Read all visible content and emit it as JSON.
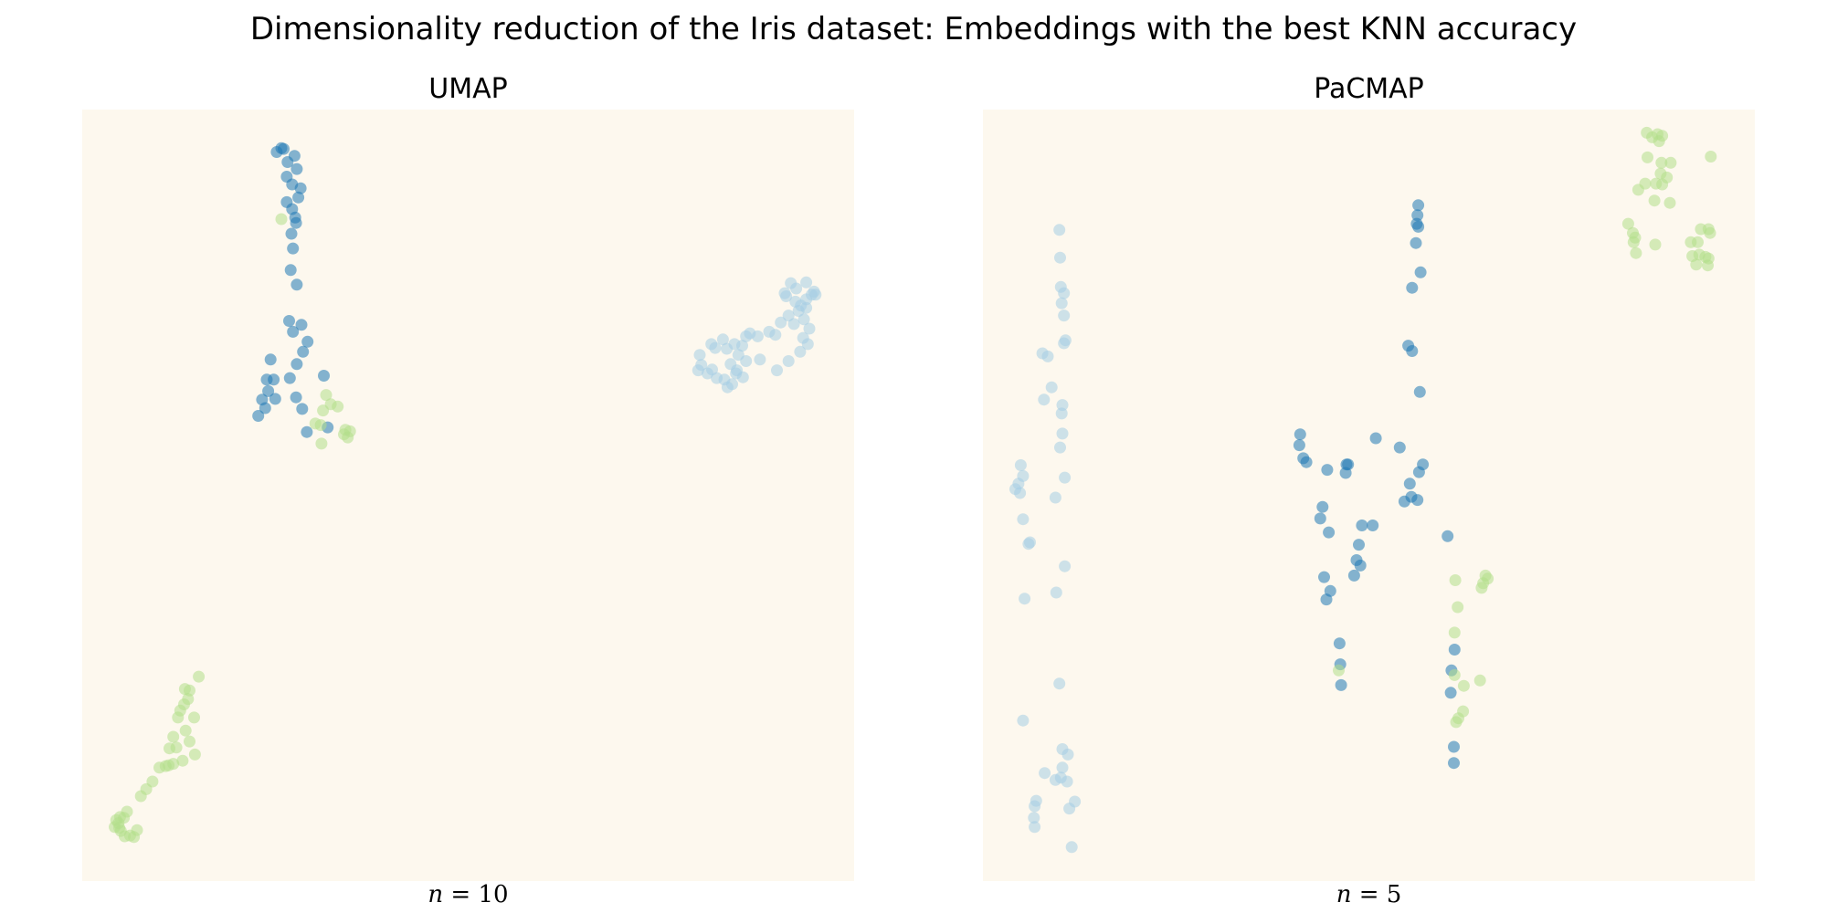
{
  "title": "Dimensionality reduction of the Iris dataset: Embeddings with the best KNN accuracy",
  "colors": {
    "background": "#fdf8ee",
    "setosa": "#a6cee3",
    "versicolor": "#1f78b4",
    "virginica": "#b2df8a",
    "point_opacity": 0.55
  },
  "chart_data": [
    {
      "type": "scatter",
      "title": "UMAP",
      "xlabel_var": "n",
      "xlabel_value": "10",
      "axes_visible": false,
      "grid": false,
      "legend": "none",
      "xlim": [
        0,
        100
      ],
      "ylim": [
        0,
        100
      ],
      "series": [
        {
          "class": "setosa",
          "points": [
            [
              80.0,
              68.2
            ],
            [
              81.5,
              69.6
            ],
            [
              82.0,
              69.1
            ],
            [
              83.5,
              69.0
            ],
            [
              83.0,
              70.2
            ],
            [
              84.5,
              69.6
            ],
            [
              85.5,
              69.4
            ],
            [
              86.0,
              70.6
            ],
            [
              86.5,
              71.0
            ],
            [
              87.5,
              70.6
            ],
            [
              89.0,
              71.2
            ],
            [
              85.0,
              68.2
            ],
            [
              86.0,
              67.4
            ],
            [
              84.0,
              67.0
            ],
            [
              84.8,
              66.2
            ],
            [
              85.6,
              65.3
            ],
            [
              84.2,
              64.4
            ],
            [
              83.6,
              64.0
            ],
            [
              82.2,
              65.2
            ],
            [
              81.6,
              66.3
            ],
            [
              80.2,
              66.9
            ],
            [
              79.8,
              66.2
            ],
            [
              81.0,
              65.8
            ],
            [
              83.2,
              65.0
            ],
            [
              84.7,
              65.8
            ],
            [
              87.8,
              67.6
            ],
            [
              90.0,
              66.2
            ],
            [
              91.5,
              67.4
            ],
            [
              93.0,
              68.6
            ],
            [
              94.0,
              69.6
            ],
            [
              93.4,
              70.4
            ],
            [
              94.2,
              71.6
            ],
            [
              93.5,
              72.8
            ],
            [
              92.2,
              72.2
            ],
            [
              91.5,
              73.3
            ],
            [
              92.8,
              73.9
            ],
            [
              93.8,
              74.3
            ],
            [
              94.5,
              76.0
            ],
            [
              93.8,
              77.6
            ],
            [
              92.5,
              76.8
            ],
            [
              91.8,
              77.5
            ],
            [
              91.2,
              75.8
            ],
            [
              92.4,
              75.1
            ],
            [
              93.8,
              75.4
            ],
            [
              94.8,
              76.4
            ],
            [
              95.0,
              76.0
            ],
            [
              93.1,
              74.6
            ],
            [
              91.0,
              76.2
            ],
            [
              90.5,
              72.4
            ],
            [
              89.8,
              70.8
            ]
          ]
        },
        {
          "class": "versicolor",
          "points": [
            [
              25.2,
              94.5
            ],
            [
              25.8,
              95.0
            ],
            [
              26.1,
              94.9
            ],
            [
              27.5,
              94.0
            ],
            [
              26.6,
              93.2
            ],
            [
              27.8,
              92.3
            ],
            [
              26.5,
              91.3
            ],
            [
              27.2,
              90.3
            ],
            [
              28.3,
              89.8
            ],
            [
              28.0,
              88.6
            ],
            [
              27.2,
              87.1
            ],
            [
              27.7,
              85.3
            ],
            [
              27.1,
              83.9
            ],
            [
              27.3,
              82.0
            ],
            [
              27.0,
              79.2
            ],
            [
              27.8,
              77.3
            ],
            [
              26.8,
              72.6
            ],
            [
              28.4,
              72.1
            ],
            [
              27.3,
              71.2
            ],
            [
              29.2,
              69.9
            ],
            [
              28.6,
              68.6
            ],
            [
              27.8,
              67.0
            ],
            [
              24.4,
              67.6
            ],
            [
              26.9,
              65.2
            ],
            [
              24.8,
              65.0
            ],
            [
              23.9,
              65.0
            ],
            [
              24.1,
              63.5
            ],
            [
              23.3,
              62.4
            ],
            [
              23.7,
              61.3
            ],
            [
              22.8,
              60.3
            ],
            [
              25.0,
              62.5
            ],
            [
              27.7,
              62.7
            ],
            [
              28.5,
              61.2
            ],
            [
              31.3,
              65.5
            ],
            [
              29.1,
              58.2
            ],
            [
              31.8,
              58.8
            ],
            [
              26.5,
              88.0
            ],
            [
              27.6,
              86.0
            ]
          ]
        },
        {
          "class": "virginica",
          "points": [
            [
              25.8,
              85.8
            ],
            [
              31.6,
              63.0
            ],
            [
              32.2,
              61.8
            ],
            [
              31.2,
              61.0
            ],
            [
              33.1,
              61.5
            ],
            [
              30.2,
              59.3
            ],
            [
              30.9,
              59.1
            ],
            [
              34.1,
              58.5
            ],
            [
              34.7,
              58.3
            ],
            [
              33.9,
              57.9
            ],
            [
              34.4,
              57.5
            ],
            [
              31.0,
              56.7
            ],
            [
              15.1,
              26.5
            ],
            [
              13.9,
              24.7
            ],
            [
              13.7,
              23.6
            ],
            [
              13.2,
              22.9
            ],
            [
              12.7,
              22.1
            ],
            [
              13.4,
              19.5
            ],
            [
              11.8,
              18.7
            ],
            [
              12.2,
              17.3
            ],
            [
              11.3,
              17.2
            ],
            [
              13.9,
              18.1
            ],
            [
              14.6,
              16.4
            ],
            [
              13.0,
              15.6
            ],
            [
              11.8,
              15.2
            ],
            [
              11.2,
              15.0
            ],
            [
              10.8,
              14.9
            ],
            [
              10.0,
              14.7
            ],
            [
              9.1,
              12.9
            ],
            [
              8.3,
              11.9
            ],
            [
              7.6,
              11.0
            ],
            [
              5.8,
              9.0
            ],
            [
              5.4,
              8.2
            ],
            [
              4.7,
              7.5
            ],
            [
              4.2,
              7.0
            ],
            [
              4.4,
              7.9
            ],
            [
              4.9,
              8.3
            ],
            [
              4.8,
              6.9
            ],
            [
              5.0,
              6.5
            ],
            [
              5.5,
              5.8
            ],
            [
              6.2,
              5.9
            ],
            [
              6.7,
              5.7
            ],
            [
              7.1,
              6.6
            ],
            [
              14.5,
              21.2
            ],
            [
              12.4,
              21.2
            ],
            [
              13.3,
              24.9
            ]
          ]
        }
      ]
    },
    {
      "type": "scatter",
      "title": "PaCMAP",
      "xlabel_var": "n",
      "xlabel_value": "5",
      "axes_visible": false,
      "grid": false,
      "legend": "none",
      "xlim": [
        0,
        100
      ],
      "ylim": [
        0,
        100
      ],
      "series": [
        {
          "class": "setosa",
          "points": [
            [
              9.9,
              84.4
            ],
            [
              10.0,
              80.8
            ],
            [
              10.1,
              77.0
            ],
            [
              10.5,
              76.2
            ],
            [
              10.2,
              74.9
            ],
            [
              10.5,
              73.3
            ],
            [
              10.7,
              70.1
            ],
            [
              10.5,
              69.7
            ],
            [
              7.7,
              68.4
            ],
            [
              8.4,
              68.0
            ],
            [
              8.9,
              64.0
            ],
            [
              7.9,
              62.4
            ],
            [
              10.3,
              61.7
            ],
            [
              10.2,
              60.6
            ],
            [
              10.3,
              58.0
            ],
            [
              10.0,
              56.2
            ],
            [
              10.6,
              52.3
            ],
            [
              4.9,
              53.9
            ],
            [
              5.2,
              52.5
            ],
            [
              4.6,
              51.5
            ],
            [
              4.2,
              50.8
            ],
            [
              4.8,
              50.3
            ],
            [
              9.4,
              49.7
            ],
            [
              5.2,
              46.9
            ],
            [
              6.1,
              43.9
            ],
            [
              5.9,
              43.7
            ],
            [
              10.6,
              40.8
            ],
            [
              9.5,
              37.4
            ],
            [
              5.4,
              36.6
            ],
            [
              9.9,
              25.6
            ],
            [
              5.2,
              20.8
            ],
            [
              10.3,
              17.1
            ],
            [
              11.0,
              16.4
            ],
            [
              10.3,
              14.7
            ],
            [
              8.0,
              14.0
            ],
            [
              10.1,
              13.4
            ],
            [
              9.4,
              13.1
            ],
            [
              10.9,
              12.9
            ],
            [
              11.9,
              10.3
            ],
            [
              6.9,
              10.4
            ],
            [
              6.7,
              9.7
            ],
            [
              11.2,
              9.4
            ],
            [
              6.6,
              8.2
            ],
            [
              6.7,
              7.0
            ],
            [
              11.5,
              4.4
            ]
          ]
        },
        {
          "class": "versicolor",
          "points": [
            [
              56.4,
              87.6
            ],
            [
              56.3,
              86.3
            ],
            [
              56.2,
              85.2
            ],
            [
              56.4,
              84.8
            ],
            [
              56.1,
              82.7
            ],
            [
              56.7,
              78.9
            ],
            [
              55.6,
              76.9
            ],
            [
              55.1,
              69.4
            ],
            [
              55.6,
              68.7
            ],
            [
              56.6,
              63.4
            ],
            [
              41.1,
              57.9
            ],
            [
              41.0,
              56.5
            ],
            [
              41.5,
              54.8
            ],
            [
              41.9,
              54.3
            ],
            [
              44.6,
              53.3
            ],
            [
              47.3,
              54.0
            ],
            [
              47.1,
              54.0
            ],
            [
              47.0,
              52.9
            ],
            [
              50.9,
              57.4
            ],
            [
              54.0,
              56.2
            ],
            [
              57.0,
              54.0
            ],
            [
              56.5,
              53.0
            ],
            [
              55.3,
              51.5
            ],
            [
              55.5,
              49.8
            ],
            [
              54.6,
              49.2
            ],
            [
              56.3,
              49.4
            ],
            [
              44.0,
              48.5
            ],
            [
              43.7,
              47.0
            ],
            [
              49.1,
              46.1
            ],
            [
              50.5,
              46.1
            ],
            [
              44.8,
              45.2
            ],
            [
              48.7,
              43.6
            ],
            [
              60.2,
              44.7
            ],
            [
              48.4,
              41.6
            ],
            [
              48.9,
              40.9
            ],
            [
              48.1,
              39.6
            ],
            [
              44.2,
              39.4
            ],
            [
              45.0,
              37.6
            ],
            [
              44.5,
              36.5
            ],
            [
              46.2,
              30.8
            ],
            [
              46.3,
              28.1
            ],
            [
              46.4,
              25.4
            ],
            [
              61.1,
              30.0
            ],
            [
              60.7,
              27.3
            ],
            [
              60.6,
              24.4
            ],
            [
              61.0,
              17.4
            ],
            [
              61.0,
              15.3
            ]
          ]
        },
        {
          "class": "virginica",
          "points": [
            [
              86.0,
              97.0
            ],
            [
              86.7,
              96.4
            ],
            [
              87.4,
              96.8
            ],
            [
              87.6,
              95.9
            ],
            [
              88.0,
              96.6
            ],
            [
              94.3,
              93.9
            ],
            [
              86.1,
              93.8
            ],
            [
              87.9,
              93.1
            ],
            [
              89.1,
              93.1
            ],
            [
              87.8,
              91.7
            ],
            [
              88.6,
              91.2
            ],
            [
              85.8,
              90.4
            ],
            [
              87.2,
              90.4
            ],
            [
              88.0,
              90.3
            ],
            [
              84.9,
              89.6
            ],
            [
              87.0,
              88.2
            ],
            [
              89.0,
              87.9
            ],
            [
              93.0,
              84.5
            ],
            [
              94.0,
              84.5
            ],
            [
              94.2,
              84.0
            ],
            [
              83.6,
              85.2
            ],
            [
              84.2,
              84.0
            ],
            [
              84.5,
              83.4
            ],
            [
              84.3,
              82.8
            ],
            [
              92.6,
              82.8
            ],
            [
              91.7,
              82.8
            ],
            [
              87.1,
              82.5
            ],
            [
              84.6,
              81.4
            ],
            [
              91.9,
              81.0
            ],
            [
              92.8,
              81.2
            ],
            [
              93.6,
              80.9
            ],
            [
              94.0,
              80.7
            ],
            [
              93.9,
              79.8
            ],
            [
              92.4,
              79.9
            ],
            [
              61.2,
              39.0
            ],
            [
              65.1,
              39.6
            ],
            [
              65.4,
              39.2
            ],
            [
              64.8,
              38.6
            ],
            [
              64.6,
              38.0
            ],
            [
              61.5,
              35.5
            ],
            [
              61.1,
              32.2
            ],
            [
              46.1,
              27.3
            ],
            [
              61.1,
              26.7
            ],
            [
              64.4,
              26.0
            ],
            [
              62.3,
              25.3
            ],
            [
              62.2,
              22.0
            ],
            [
              61.6,
              21.1
            ],
            [
              61.3,
              20.6
            ]
          ]
        }
      ]
    }
  ]
}
